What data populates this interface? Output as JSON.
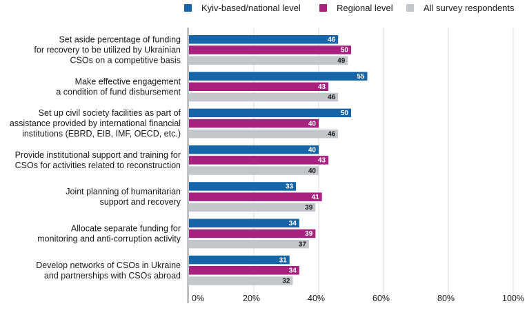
{
  "chart_data": {
    "type": "bar",
    "orientation": "horizontal",
    "legend_position": "top-right",
    "categories": [
      [
        "Set aside percentage of funding",
        "for recovery to be utilized by Ukrainian",
        "CSOs on a competitive basis"
      ],
      [
        "Make effective engagement",
        "a condition of fund disbursement"
      ],
      [
        "Set up civil society facilities as part of",
        "assistance provided by international financial",
        "institutions (EBRD, EIB, IMF, OECD, etc.)"
      ],
      [
        "Provide institutional support and training for",
        "CSOs for activities related to reconstruction"
      ],
      [
        "Joint planning of humanitarian",
        "support and recovery"
      ],
      [
        "Allocate separate funding for",
        "monitoring and anti-corruption activity"
      ],
      [
        "Develop networks of CSOs in Ukraine",
        "and partnerships with CSOs abroad"
      ]
    ],
    "series": [
      {
        "name": "Kyiv-based/national level",
        "color": "#1565a8",
        "label_color": "#ffffff",
        "values": [
          46,
          55,
          50,
          40,
          33,
          34,
          31
        ]
      },
      {
        "name": "Regional level",
        "color": "#a8217f",
        "label_color": "#ffffff",
        "values": [
          50,
          43,
          40,
          43,
          41,
          39,
          34
        ]
      },
      {
        "name": "All survey respondents",
        "color": "#c3c6cb",
        "label_color": "#1a1a1a",
        "values": [
          49,
          46,
          46,
          40,
          39,
          37,
          32
        ]
      }
    ],
    "xlim": [
      0,
      100
    ],
    "xticks": [
      0,
      20,
      40,
      60,
      80,
      100
    ],
    "xtick_labels": [
      "0%",
      "20%",
      "40%",
      "60%",
      "80%",
      "100%"
    ],
    "grid": true,
    "xlabel": "",
    "ylabel": ""
  }
}
